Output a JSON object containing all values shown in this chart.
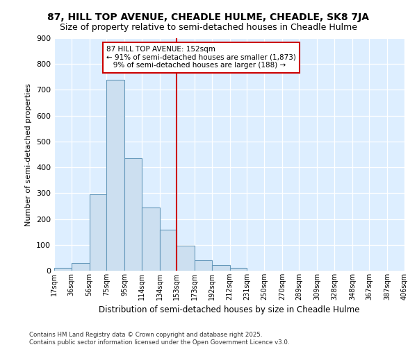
{
  "title": "87, HILL TOP AVENUE, CHEADLE HULME, CHEADLE, SK8 7JA",
  "subtitle": "Size of property relative to semi-detached houses in Cheadle Hulme",
  "xlabel": "Distribution of semi-detached houses by size in Cheadle Hulme",
  "ylabel": "Number of semi-detached properties",
  "bin_edges": [
    17,
    36,
    56,
    75,
    95,
    114,
    134,
    153,
    173,
    192,
    212,
    231,
    250,
    270,
    289,
    309,
    328,
    348,
    367,
    387,
    406
  ],
  "bin_labels": [
    "17sqm",
    "36sqm",
    "56sqm",
    "75sqm",
    "95sqm",
    "114sqm",
    "134sqm",
    "153sqm",
    "173sqm",
    "192sqm",
    "212sqm",
    "231sqm",
    "250sqm",
    "270sqm",
    "289sqm",
    "309sqm",
    "328sqm",
    "348sqm",
    "367sqm",
    "387sqm",
    "406sqm"
  ],
  "bar_heights": [
    10,
    30,
    295,
    740,
    435,
    245,
    158,
    97,
    40,
    22,
    12,
    0,
    0,
    0,
    0,
    0,
    0,
    0,
    0,
    0
  ],
  "bar_color": "#ccdff0",
  "bar_edge_color": "#6699bb",
  "vline_x": 153,
  "vline_color": "#cc0000",
  "annotation_text": "87 HILL TOP AVENUE: 152sqm\n← 91% of semi-detached houses are smaller (1,873)\n   9% of semi-detached houses are larger (188) →",
  "annotation_box_color": "#cc0000",
  "ylim": [
    0,
    900
  ],
  "yticks": [
    0,
    100,
    200,
    300,
    400,
    500,
    600,
    700,
    800,
    900
  ],
  "bg_color": "#ddeeff",
  "footer_line1": "Contains HM Land Registry data © Crown copyright and database right 2025.",
  "footer_line2": "Contains public sector information licensed under the Open Government Licence v3.0.",
  "title_fontsize": 10,
  "subtitle_fontsize": 9
}
